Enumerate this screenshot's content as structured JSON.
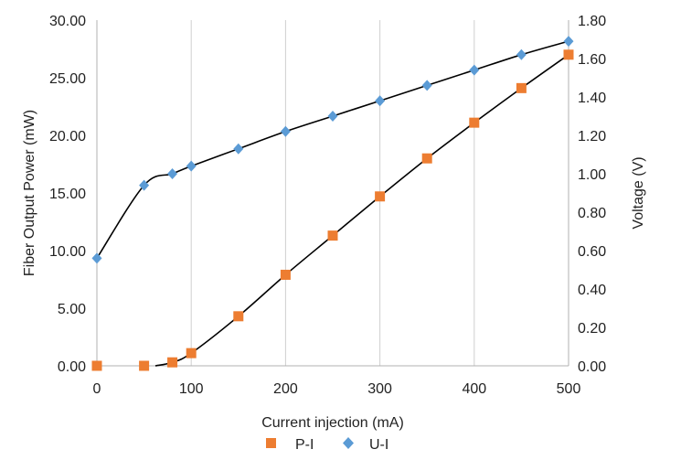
{
  "chart_data": {
    "type": "scatter",
    "title": "",
    "xlabel": "Current injection (mA)",
    "ylabel_left": "Fiber Output Power (mW)",
    "ylabel_right": "Voltage (V)",
    "xlim": [
      0,
      500
    ],
    "ylim_left": [
      0,
      30
    ],
    "ylim_right": [
      0,
      1.8
    ],
    "x_ticks": [
      "0",
      "100",
      "200",
      "300",
      "400",
      "500"
    ],
    "y_left_ticks": [
      "0.00",
      "5.00",
      "10.00",
      "15.00",
      "20.00",
      "25.00",
      "30.00"
    ],
    "y_right_ticks": [
      "0.00",
      "0.20",
      "0.40",
      "0.60",
      "0.80",
      "1.00",
      "1.20",
      "1.40",
      "1.60",
      "1.80"
    ],
    "grid": "vertical",
    "legend": "bottom",
    "series": [
      {
        "name": "P-I",
        "axis": "left",
        "marker": "square",
        "color": "#ED7D31",
        "x": [
          0,
          50,
          80,
          100,
          150,
          200,
          250,
          300,
          350,
          400,
          450,
          500
        ],
        "y": [
          0.0,
          0.0,
          0.3,
          1.1,
          4.3,
          7.9,
          11.3,
          14.7,
          18.0,
          21.1,
          24.1,
          27.0
        ]
      },
      {
        "name": "U-I",
        "axis": "right",
        "marker": "diamond",
        "color": "#5B9BD5",
        "x": [
          0,
          50,
          80,
          100,
          150,
          200,
          250,
          300,
          350,
          400,
          450,
          500
        ],
        "y": [
          0.56,
          0.94,
          1.0,
          1.04,
          1.13,
          1.22,
          1.3,
          1.38,
          1.46,
          1.54,
          1.62,
          1.69
        ]
      }
    ],
    "trendlines": [
      {
        "series": "P-I",
        "x": [
          62,
          80,
          100,
          150,
          200,
          250,
          300,
          350,
          400,
          450,
          500
        ],
        "y": [
          0.0,
          0.3,
          1.1,
          4.3,
          7.9,
          11.3,
          14.7,
          18.0,
          21.1,
          24.1,
          27.0
        ]
      },
      {
        "series": "U-I",
        "x": [
          0,
          50,
          80,
          100,
          150,
          200,
          250,
          300,
          350,
          400,
          450,
          500
        ],
        "y": [
          0.56,
          0.94,
          1.0,
          1.04,
          1.13,
          1.22,
          1.3,
          1.38,
          1.46,
          1.54,
          1.62,
          1.69
        ]
      }
    ]
  }
}
